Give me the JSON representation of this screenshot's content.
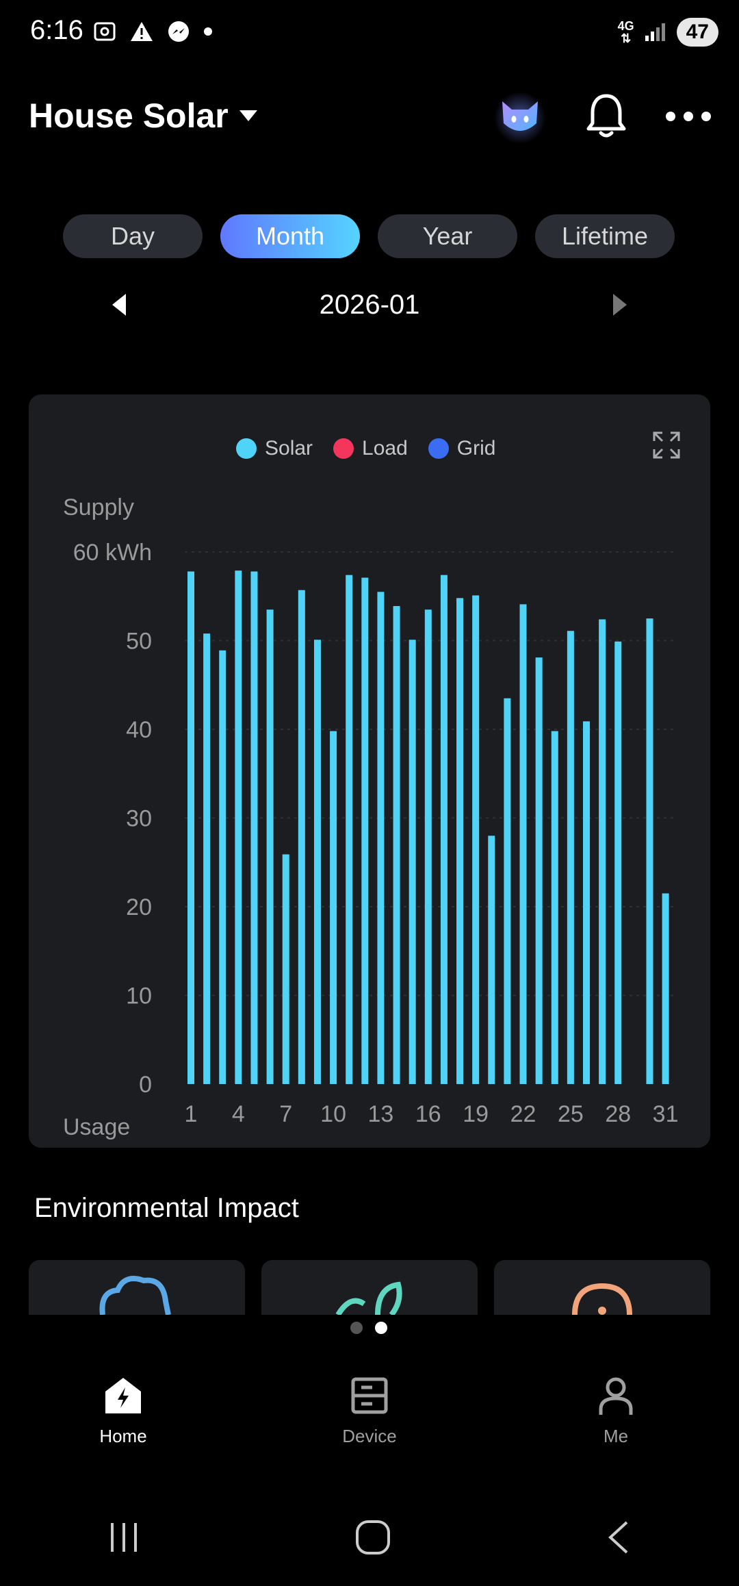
{
  "status_bar": {
    "time": "6:16",
    "battery": "47",
    "network": "4G"
  },
  "header": {
    "title": "House Solar"
  },
  "tabs": [
    {
      "label": "Day",
      "active": false
    },
    {
      "label": "Month",
      "active": true
    },
    {
      "label": "Year",
      "active": false
    },
    {
      "label": "Lifetime",
      "active": false
    }
  ],
  "date": {
    "value": "2026-01"
  },
  "chart_data": {
    "type": "bar",
    "legend": [
      {
        "label": "Solar",
        "color": "#4fd3f7"
      },
      {
        "label": "Load",
        "color": "#f5365c"
      },
      {
        "label": "Grid",
        "color": "#3a6cf4"
      }
    ],
    "ylabel_top": "Supply",
    "ylabel_bottom": "Usage",
    "y_ticks": [
      "60 kWh",
      "50",
      "40",
      "30",
      "20",
      "10",
      "0"
    ],
    "ylim": [
      0,
      60
    ],
    "x_ticks": [
      "1",
      "4",
      "7",
      "10",
      "13",
      "16",
      "19",
      "22",
      "25",
      "28",
      "31"
    ],
    "categories": [
      1,
      2,
      3,
      4,
      5,
      6,
      7,
      8,
      9,
      10,
      11,
      12,
      13,
      14,
      15,
      16,
      17,
      18,
      19,
      20,
      21,
      22,
      23,
      24,
      25,
      26,
      27,
      28,
      29,
      30,
      31
    ],
    "series": [
      {
        "name": "Solar",
        "color": "#4fd3f7",
        "values": [
          57.8,
          50.8,
          48.9,
          57.9,
          57.8,
          53.5,
          25.9,
          55.7,
          50.1,
          39.8,
          57.4,
          57.1,
          55.5,
          53.9,
          50.1,
          53.5,
          57.4,
          54.8,
          55.1,
          28.0,
          43.5,
          54.1,
          48.1,
          39.8,
          51.1,
          40.9,
          52.4,
          49.9,
          0,
          52.5,
          21.5
        ]
      }
    ],
    "grid": true
  },
  "environment": {
    "title": "Environmental Impact"
  },
  "bottom_nav": [
    {
      "label": "Home",
      "icon": "home-bolt-icon",
      "active": true
    },
    {
      "label": "Device",
      "icon": "device-icon",
      "active": false
    },
    {
      "label": "Me",
      "icon": "person-icon",
      "active": false
    }
  ]
}
